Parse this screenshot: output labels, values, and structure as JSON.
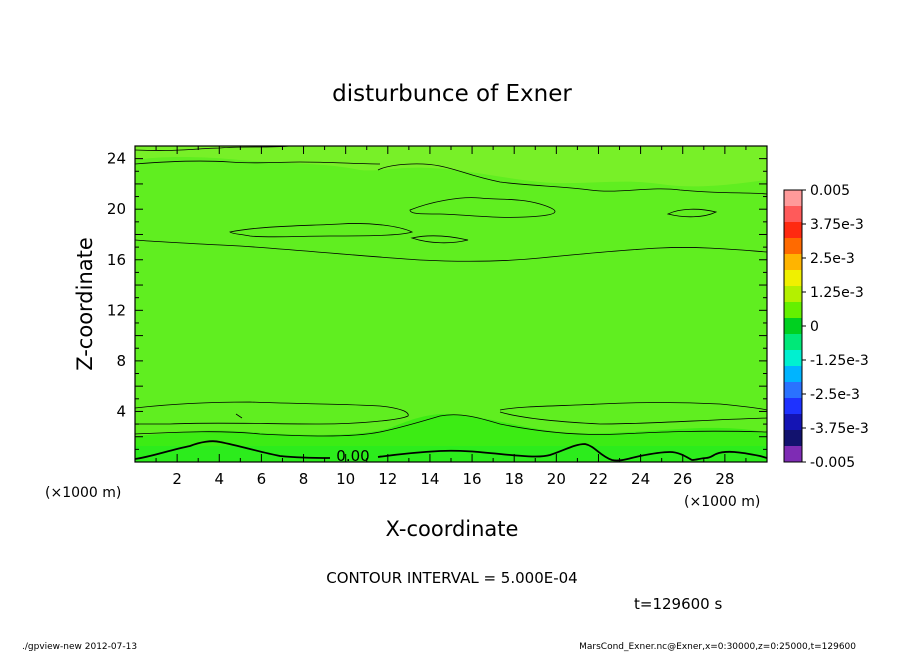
{
  "chart_data": {
    "type": "heatmap",
    "title": "disturbunce of Exner",
    "xlabel": "X-coordinate",
    "ylabel": "Z-coordinate",
    "x_unit": "(×1000 m)",
    "y_unit": "(×1000 m)",
    "xlim": [
      0,
      30
    ],
    "ylim": [
      0,
      25
    ],
    "x_ticks": [
      "2",
      "4",
      "6",
      "8",
      "10",
      "12",
      "14",
      "16",
      "18",
      "20",
      "22",
      "24",
      "26",
      "28"
    ],
    "y_ticks": [
      "4",
      "8",
      "12",
      "16",
      "20",
      "24"
    ],
    "colorbar": {
      "labels": [
        "0.005",
        "3.75e-3",
        "2.5e-3",
        "1.25e-3",
        "0",
        "-1.25e-3",
        "-2.5e-3",
        "-3.75e-3",
        "-0.005"
      ],
      "colors": [
        "#ff9a9a",
        "#ff5a5a",
        "#ff2a10",
        "#ff6a00",
        "#ffb400",
        "#f0f000",
        "#b4f000",
        "#64f000",
        "#00d020",
        "#00e878",
        "#00f0d0",
        "#00b4ff",
        "#2a72ff",
        "#1e32ff",
        "#1414b4",
        "#12126e",
        "#7e2cb4"
      ]
    },
    "contour_label": "0.00",
    "contour_interval_text": "CONTOUR INTERVAL = 5.000E-04",
    "time_text": "t=129600 s",
    "background_color": "#60ee20",
    "field_colors": {
      "low": "#3cec14",
      "high": "#78f028",
      "base": "#2cec1c"
    }
  },
  "footer": {
    "left": "./gpview-new  2012-07-13",
    "right": "MarsCond_Exner.nc@Exner,x=0:30000,z=0:25000,t=129600"
  }
}
